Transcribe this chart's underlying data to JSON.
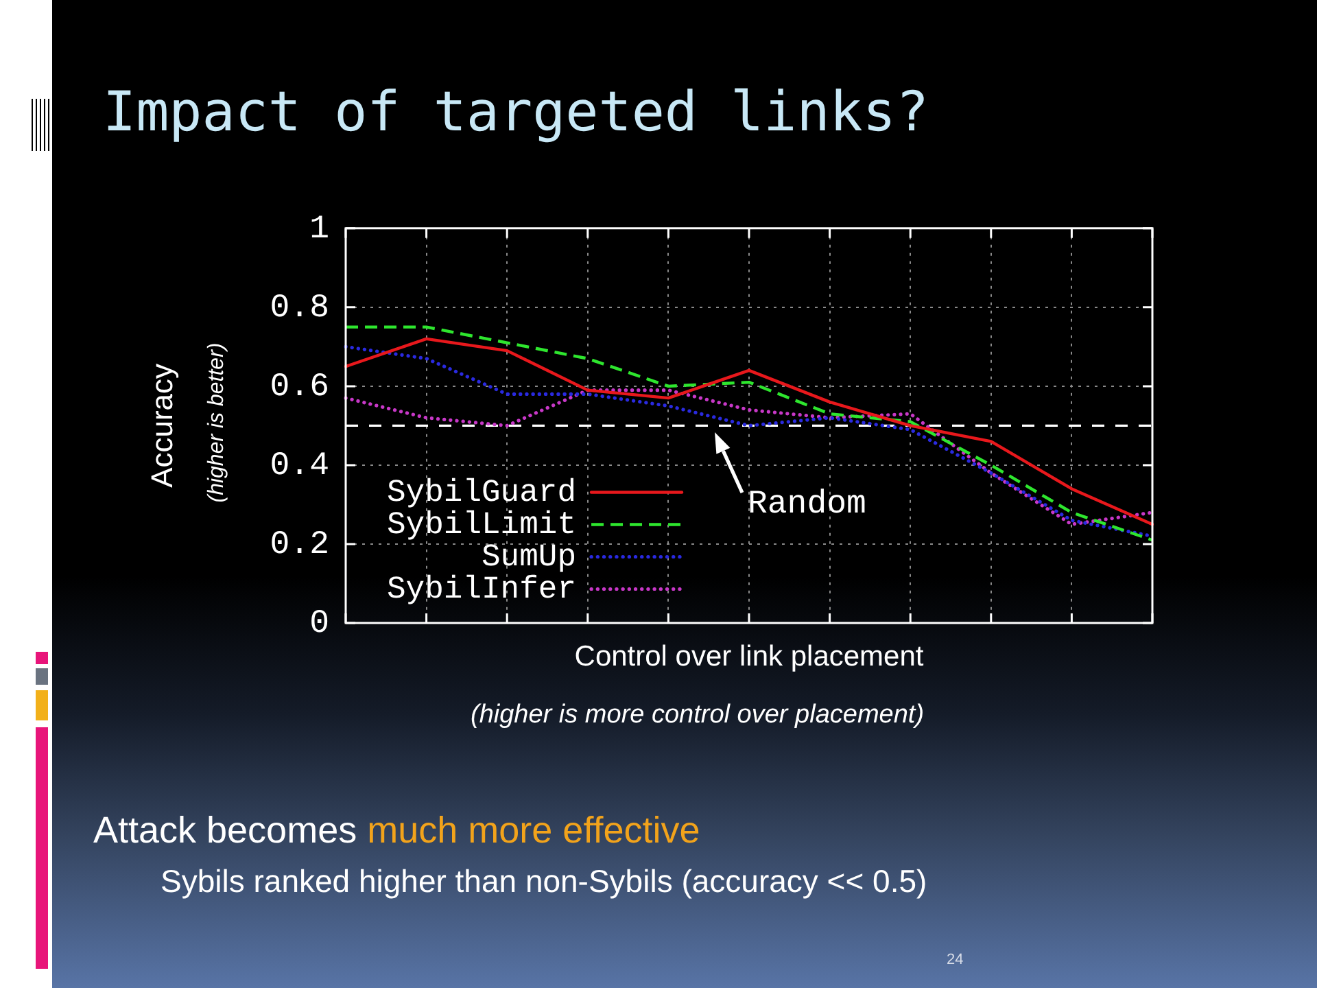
{
  "chart_data": {
    "type": "line",
    "title": "Impact of targeted links?",
    "xlabel": "Control over link placement",
    "ylabel": "Accuracy",
    "annotations": [
      "(higher is better)",
      "(higher is more control over placement)",
      "Attack becomes",
      "much more effective",
      "Sybils ranked higher than non-Sybils (accuracy << 0.5)",
      "24"
    ],
    "categories": [
      null,
      null,
      null,
      null,
      null,
      null,
      null,
      null,
      null,
      null,
      null
    ],
    "series": [
      {
        "name": "SybilGuard",
        "color": "#e8181c",
        "line_style": "solid",
        "values": [
          0.65,
          0.72,
          0.69,
          0.59,
          0.57,
          0.64,
          0.56,
          0.5,
          0.46,
          0.34,
          0.25
        ]
      },
      {
        "name": "SybilLimit",
        "color": "#2ee62e",
        "line_style": "dashed",
        "values": [
          0.75,
          0.75,
          0.71,
          0.67,
          0.6,
          0.61,
          0.53,
          0.51,
          0.4,
          0.28,
          0.21
        ]
      },
      {
        "name": "SumUp",
        "color": "#2a2ae0",
        "line_style": "dotted",
        "values": [
          0.7,
          0.67,
          0.58,
          0.58,
          0.55,
          0.5,
          0.52,
          0.49,
          0.38,
          0.26,
          0.22
        ]
      },
      {
        "name": "SybilInfer",
        "color": "#c838c8",
        "line_style": "dotted",
        "values": [
          0.57,
          0.52,
          0.5,
          0.59,
          0.59,
          0.54,
          0.52,
          0.53,
          0.38,
          0.25,
          0.28
        ]
      }
    ],
    "ylim": [
      0,
      1
    ],
    "yticks": [
      0,
      0.2,
      0.4,
      0.6,
      0.8,
      1
    ],
    "grid": true,
    "legend": "bottom left",
    "tick_labels": "y",
    "marker": "none",
    "ref_lines": [
      {
        "axis": "y",
        "value": 0.5,
        "label": "Random",
        "color": "#ffffff",
        "line_style": "dashed"
      }
    ]
  }
}
